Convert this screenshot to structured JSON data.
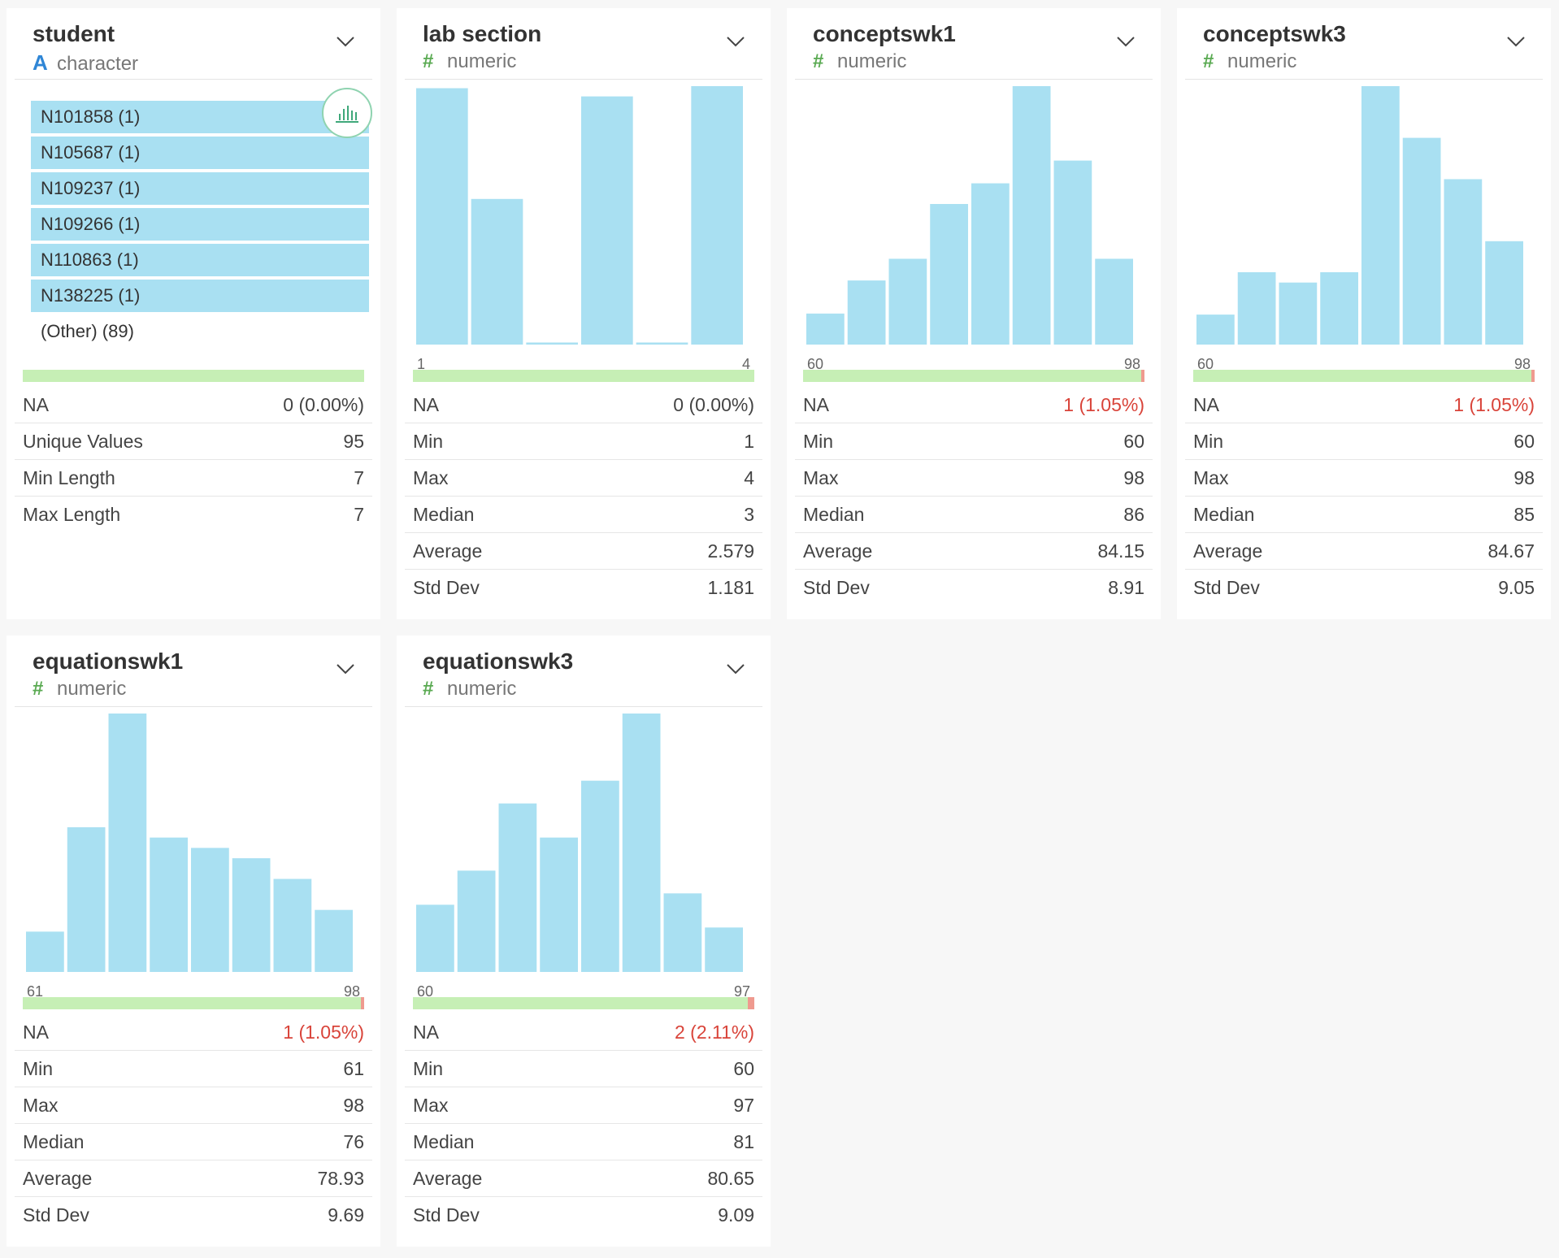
{
  "colors": {
    "bar": "#a9e0f2",
    "na_ok": "#c6efb5",
    "na_missing": "#ef9a8f",
    "numeric_icon": "#5aaa52",
    "character_icon": "#2f86d6",
    "na_text_alert": "#d9443a"
  },
  "columns": [
    {
      "name": "student",
      "type_icon": "A",
      "type_label": "character",
      "icon_name": "character-type-icon",
      "top_values": [
        {
          "label": "N101858 (1)"
        },
        {
          "label": "N105687 (1)"
        },
        {
          "label": "N109237 (1)"
        },
        {
          "label": "N109266 (1)"
        },
        {
          "label": "N110863 (1)"
        },
        {
          "label": "N138225 (1)"
        }
      ],
      "other_label": "(Other) (89)",
      "na_fraction": 0,
      "stats": [
        {
          "label": "NA",
          "value": "0 (0.00%)",
          "alert": false
        },
        {
          "label": "Unique Values",
          "value": "95"
        },
        {
          "label": "Min Length",
          "value": "7"
        },
        {
          "label": "Max Length",
          "value": "7"
        }
      ]
    },
    {
      "name": "lab section",
      "type_icon": "#",
      "type_label": "numeric",
      "axis_min": "1",
      "axis_max": "4",
      "histogram": [
        25,
        14.2,
        0.2,
        24.2,
        0.2,
        25.2
      ],
      "na_fraction": 0,
      "stats": [
        {
          "label": "NA",
          "value": "0 (0.00%)",
          "alert": false
        },
        {
          "label": "Min",
          "value": "1"
        },
        {
          "label": "Max",
          "value": "4"
        },
        {
          "label": "Median",
          "value": "3"
        },
        {
          "label": "Average",
          "value": "2.579"
        },
        {
          "label": "Std Dev",
          "value": "1.181"
        }
      ]
    },
    {
      "name": "conceptswk1",
      "type_icon": "#",
      "type_label": "numeric",
      "axis_min": "60",
      "axis_max": "98",
      "histogram": [
        3,
        6.2,
        8.3,
        13.6,
        15.6,
        25,
        17.8,
        8.3
      ],
      "na_fraction": 0.0105,
      "stats": [
        {
          "label": "NA",
          "value": "1 (1.05%)",
          "alert": true
        },
        {
          "label": "Min",
          "value": "60"
        },
        {
          "label": "Max",
          "value": "98"
        },
        {
          "label": "Median",
          "value": "86"
        },
        {
          "label": "Average",
          "value": "84.15"
        },
        {
          "label": "Std Dev",
          "value": "8.91"
        }
      ]
    },
    {
      "name": "conceptswk3",
      "type_icon": "#",
      "type_label": "numeric",
      "axis_min": "60",
      "axis_max": "98",
      "histogram": [
        2.9,
        7,
        6,
        7,
        25,
        20,
        16,
        10
      ],
      "na_fraction": 0.0105,
      "stats": [
        {
          "label": "NA",
          "value": "1 (1.05%)",
          "alert": true
        },
        {
          "label": "Min",
          "value": "60"
        },
        {
          "label": "Max",
          "value": "98"
        },
        {
          "label": "Median",
          "value": "85"
        },
        {
          "label": "Average",
          "value": "84.67"
        },
        {
          "label": "Std Dev",
          "value": "9.05"
        }
      ]
    },
    {
      "name": "equationswk1",
      "type_icon": "#",
      "type_label": "numeric",
      "axis_min": "61",
      "axis_max": "98",
      "histogram": [
        3.9,
        14,
        25,
        13,
        12,
        11,
        9,
        6
      ],
      "na_fraction": 0.0105,
      "stats": [
        {
          "label": "NA",
          "value": "1 (1.05%)",
          "alert": true
        },
        {
          "label": "Min",
          "value": "61"
        },
        {
          "label": "Max",
          "value": "98"
        },
        {
          "label": "Median",
          "value": "76"
        },
        {
          "label": "Average",
          "value": "78.93"
        },
        {
          "label": "Std Dev",
          "value": "9.69"
        }
      ]
    },
    {
      "name": "equationswk3",
      "type_icon": "#",
      "type_label": "numeric",
      "axis_min": "60",
      "axis_max": "97",
      "histogram": [
        6.5,
        9.8,
        16.3,
        13,
        18.5,
        25,
        7.6,
        4.3
      ],
      "na_fraction": 0.0211,
      "stats": [
        {
          "label": "NA",
          "value": "2 (2.11%)",
          "alert": true
        },
        {
          "label": "Min",
          "value": "60"
        },
        {
          "label": "Max",
          "value": "97"
        },
        {
          "label": "Median",
          "value": "81"
        },
        {
          "label": "Average",
          "value": "80.65"
        },
        {
          "label": "Std Dev",
          "value": "9.09"
        }
      ]
    }
  ]
}
